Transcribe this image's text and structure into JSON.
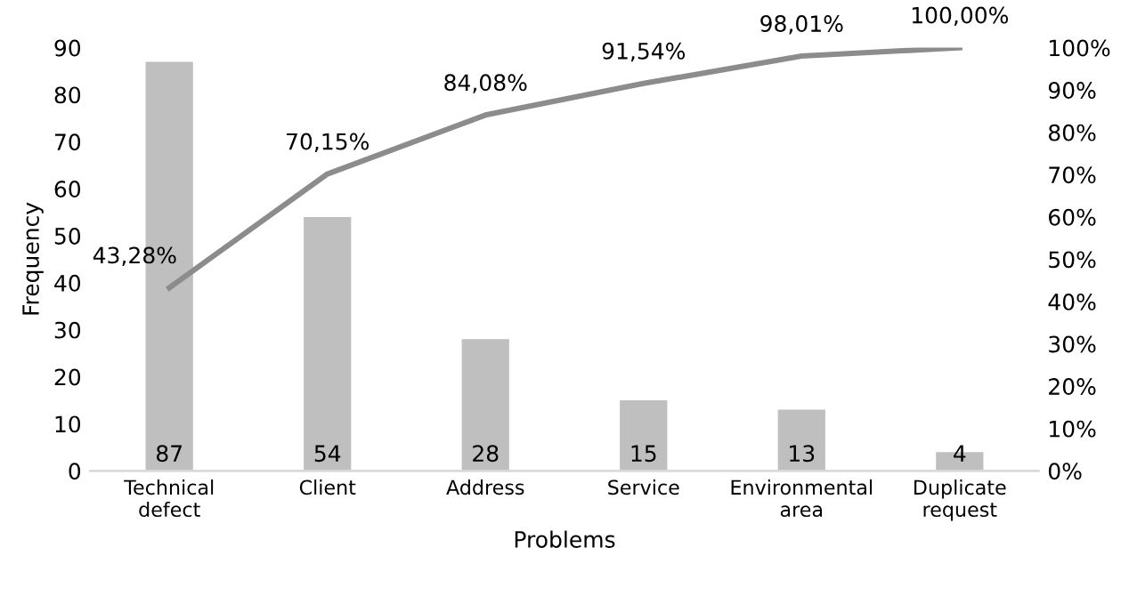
{
  "chart_data": {
    "type": "bar",
    "xlabel": "Problems",
    "ylabel": "Frequency",
    "categories": [
      "Technical\ndefect",
      "Client",
      "Address",
      "Service",
      "Environmental\narea",
      "Duplicate\nrequest"
    ],
    "series": [
      {
        "color": "#bfbfbf",
        "values": [
          87,
          54,
          28,
          15,
          13,
          4
        ],
        "value_labels": [
          "87",
          "54",
          "28",
          "15",
          "13",
          "4"
        ]
      },
      {
        "type": "line",
        "axis": "y2",
        "color": "#8c8c8c",
        "values": [
          43.28,
          70.15,
          84.08,
          91.54,
          98.01,
          100.0
        ],
        "value_labels": [
          "43,28%",
          "70,15%",
          "84,08%",
          "91,54%",
          "98,01%",
          "100,00%"
        ]
      }
    ],
    "ylim": [
      0,
      90
    ],
    "yticks": [
      0,
      10,
      20,
      30,
      40,
      50,
      60,
      70,
      80,
      90
    ],
    "y2lim": [
      0,
      100
    ],
    "y2ticks": [
      {
        "value": 0,
        "label": "0%"
      },
      {
        "value": 10,
        "label": "10%"
      },
      {
        "value": 20,
        "label": "20%"
      },
      {
        "value": 30,
        "label": "30%"
      },
      {
        "value": 40,
        "label": "40%"
      },
      {
        "value": 50,
        "label": "50%"
      },
      {
        "value": 60,
        "label": "60%"
      },
      {
        "value": 70,
        "label": "70%"
      },
      {
        "value": 80,
        "label": "80%"
      },
      {
        "value": 90,
        "label": "90%"
      },
      {
        "value": 100,
        "label": "100%"
      }
    ],
    "grid": false,
    "legend": false,
    "marker": "none",
    "line_style": "solid"
  }
}
